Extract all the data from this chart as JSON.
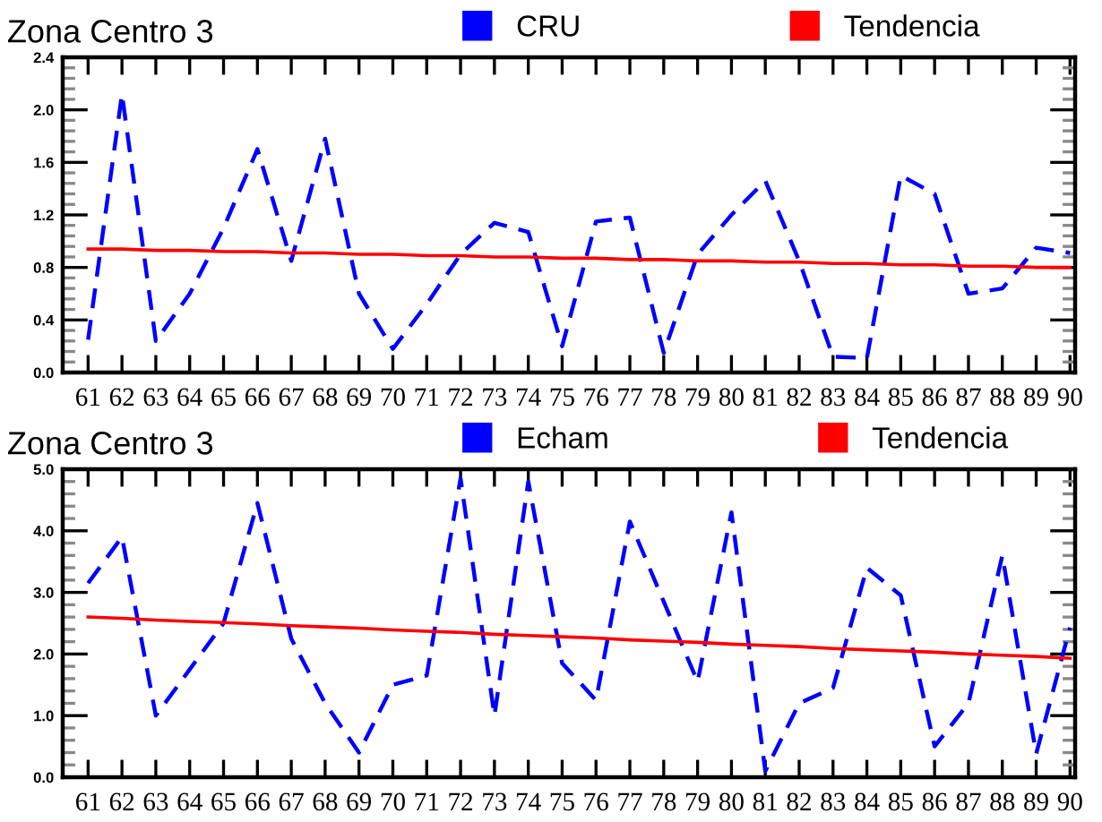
{
  "chart_data": [
    {
      "type": "line",
      "title": "Zona Centro 3",
      "categories": [
        "61",
        "62",
        "63",
        "64",
        "65",
        "66",
        "67",
        "68",
        "69",
        "70",
        "71",
        "72",
        "73",
        "74",
        "75",
        "76",
        "77",
        "78",
        "79",
        "80",
        "81",
        "82",
        "83",
        "84",
        "85",
        "86",
        "87",
        "88",
        "89",
        "90"
      ],
      "series": [
        {
          "name": "CRU",
          "color": "#0000ff",
          "line_style": "dashed",
          "values": [
            0.25,
            2.12,
            0.24,
            0.6,
            1.1,
            1.7,
            0.85,
            1.78,
            0.6,
            0.18,
            0.52,
            0.9,
            1.14,
            1.07,
            0.2,
            1.15,
            1.18,
            0.15,
            0.9,
            1.2,
            1.46,
            0.85,
            0.12,
            0.11,
            1.5,
            1.36,
            0.6,
            0.64,
            0.95,
            0.91
          ]
        },
        {
          "name": "Tendencia",
          "color": "#ff0000",
          "line_style": "solid",
          "values": [
            0.94,
            0.94,
            0.93,
            0.93,
            0.92,
            0.92,
            0.91,
            0.91,
            0.9,
            0.9,
            0.89,
            0.89,
            0.88,
            0.88,
            0.87,
            0.87,
            0.86,
            0.86,
            0.85,
            0.85,
            0.84,
            0.84,
            0.83,
            0.83,
            0.82,
            0.82,
            0.81,
            0.81,
            0.8,
            0.8
          ]
        }
      ],
      "ylim": [
        0,
        2.4
      ],
      "yticks": [
        {
          "value": 0,
          "label": "0.0"
        },
        {
          "value": 0.4,
          "label": "0.4"
        },
        {
          "value": 0.8,
          "label": "0.8"
        },
        {
          "value": 1.2,
          "label": "1.2"
        },
        {
          "value": 1.6,
          "label": "1.6"
        },
        {
          "value": 2.0,
          "label": "2.0"
        },
        {
          "value": 2.4,
          "label": "2.4"
        }
      ],
      "legend": "top",
      "grid": false,
      "marker": "none"
    },
    {
      "type": "line",
      "title": "Zona Centro 3",
      "categories": [
        "61",
        "62",
        "63",
        "64",
        "65",
        "66",
        "67",
        "68",
        "69",
        "70",
        "71",
        "72",
        "73",
        "74",
        "75",
        "76",
        "77",
        "78",
        "79",
        "80",
        "81",
        "82",
        "83",
        "84",
        "85",
        "86",
        "87",
        "88",
        "89",
        "90"
      ],
      "series": [
        {
          "name": "Echam",
          "color": "#0000ff",
          "line_style": "dashed",
          "values": [
            3.15,
            3.9,
            1.0,
            1.75,
            2.5,
            4.45,
            2.25,
            1.2,
            0.4,
            1.5,
            1.65,
            4.85,
            1.0,
            4.8,
            1.85,
            1.25,
            4.15,
            2.85,
            1.55,
            4.3,
            0.1,
            1.2,
            1.45,
            3.4,
            2.95,
            0.5,
            1.2,
            3.6,
            0.38,
            2.43
          ]
        },
        {
          "name": "Tendencia",
          "color": "#ff0000",
          "line_style": "solid",
          "values": [
            2.6,
            2.58,
            2.55,
            2.53,
            2.51,
            2.49,
            2.46,
            2.44,
            2.42,
            2.39,
            2.37,
            2.35,
            2.32,
            2.3,
            2.28,
            2.26,
            2.23,
            2.21,
            2.19,
            2.16,
            2.14,
            2.12,
            2.09,
            2.07,
            2.05,
            2.03,
            2.0,
            1.98,
            1.96,
            1.93
          ]
        }
      ],
      "ylim": [
        0,
        5
      ],
      "yticks": [
        {
          "value": 0,
          "label": "0.0"
        },
        {
          "value": 1,
          "label": "1.0"
        },
        {
          "value": 2,
          "label": "2.0"
        },
        {
          "value": 3,
          "label": "3.0"
        },
        {
          "value": 4,
          "label": "4.0"
        },
        {
          "value": 5,
          "label": "5.0"
        }
      ],
      "legend": "top",
      "grid": false,
      "marker": "none"
    }
  ]
}
